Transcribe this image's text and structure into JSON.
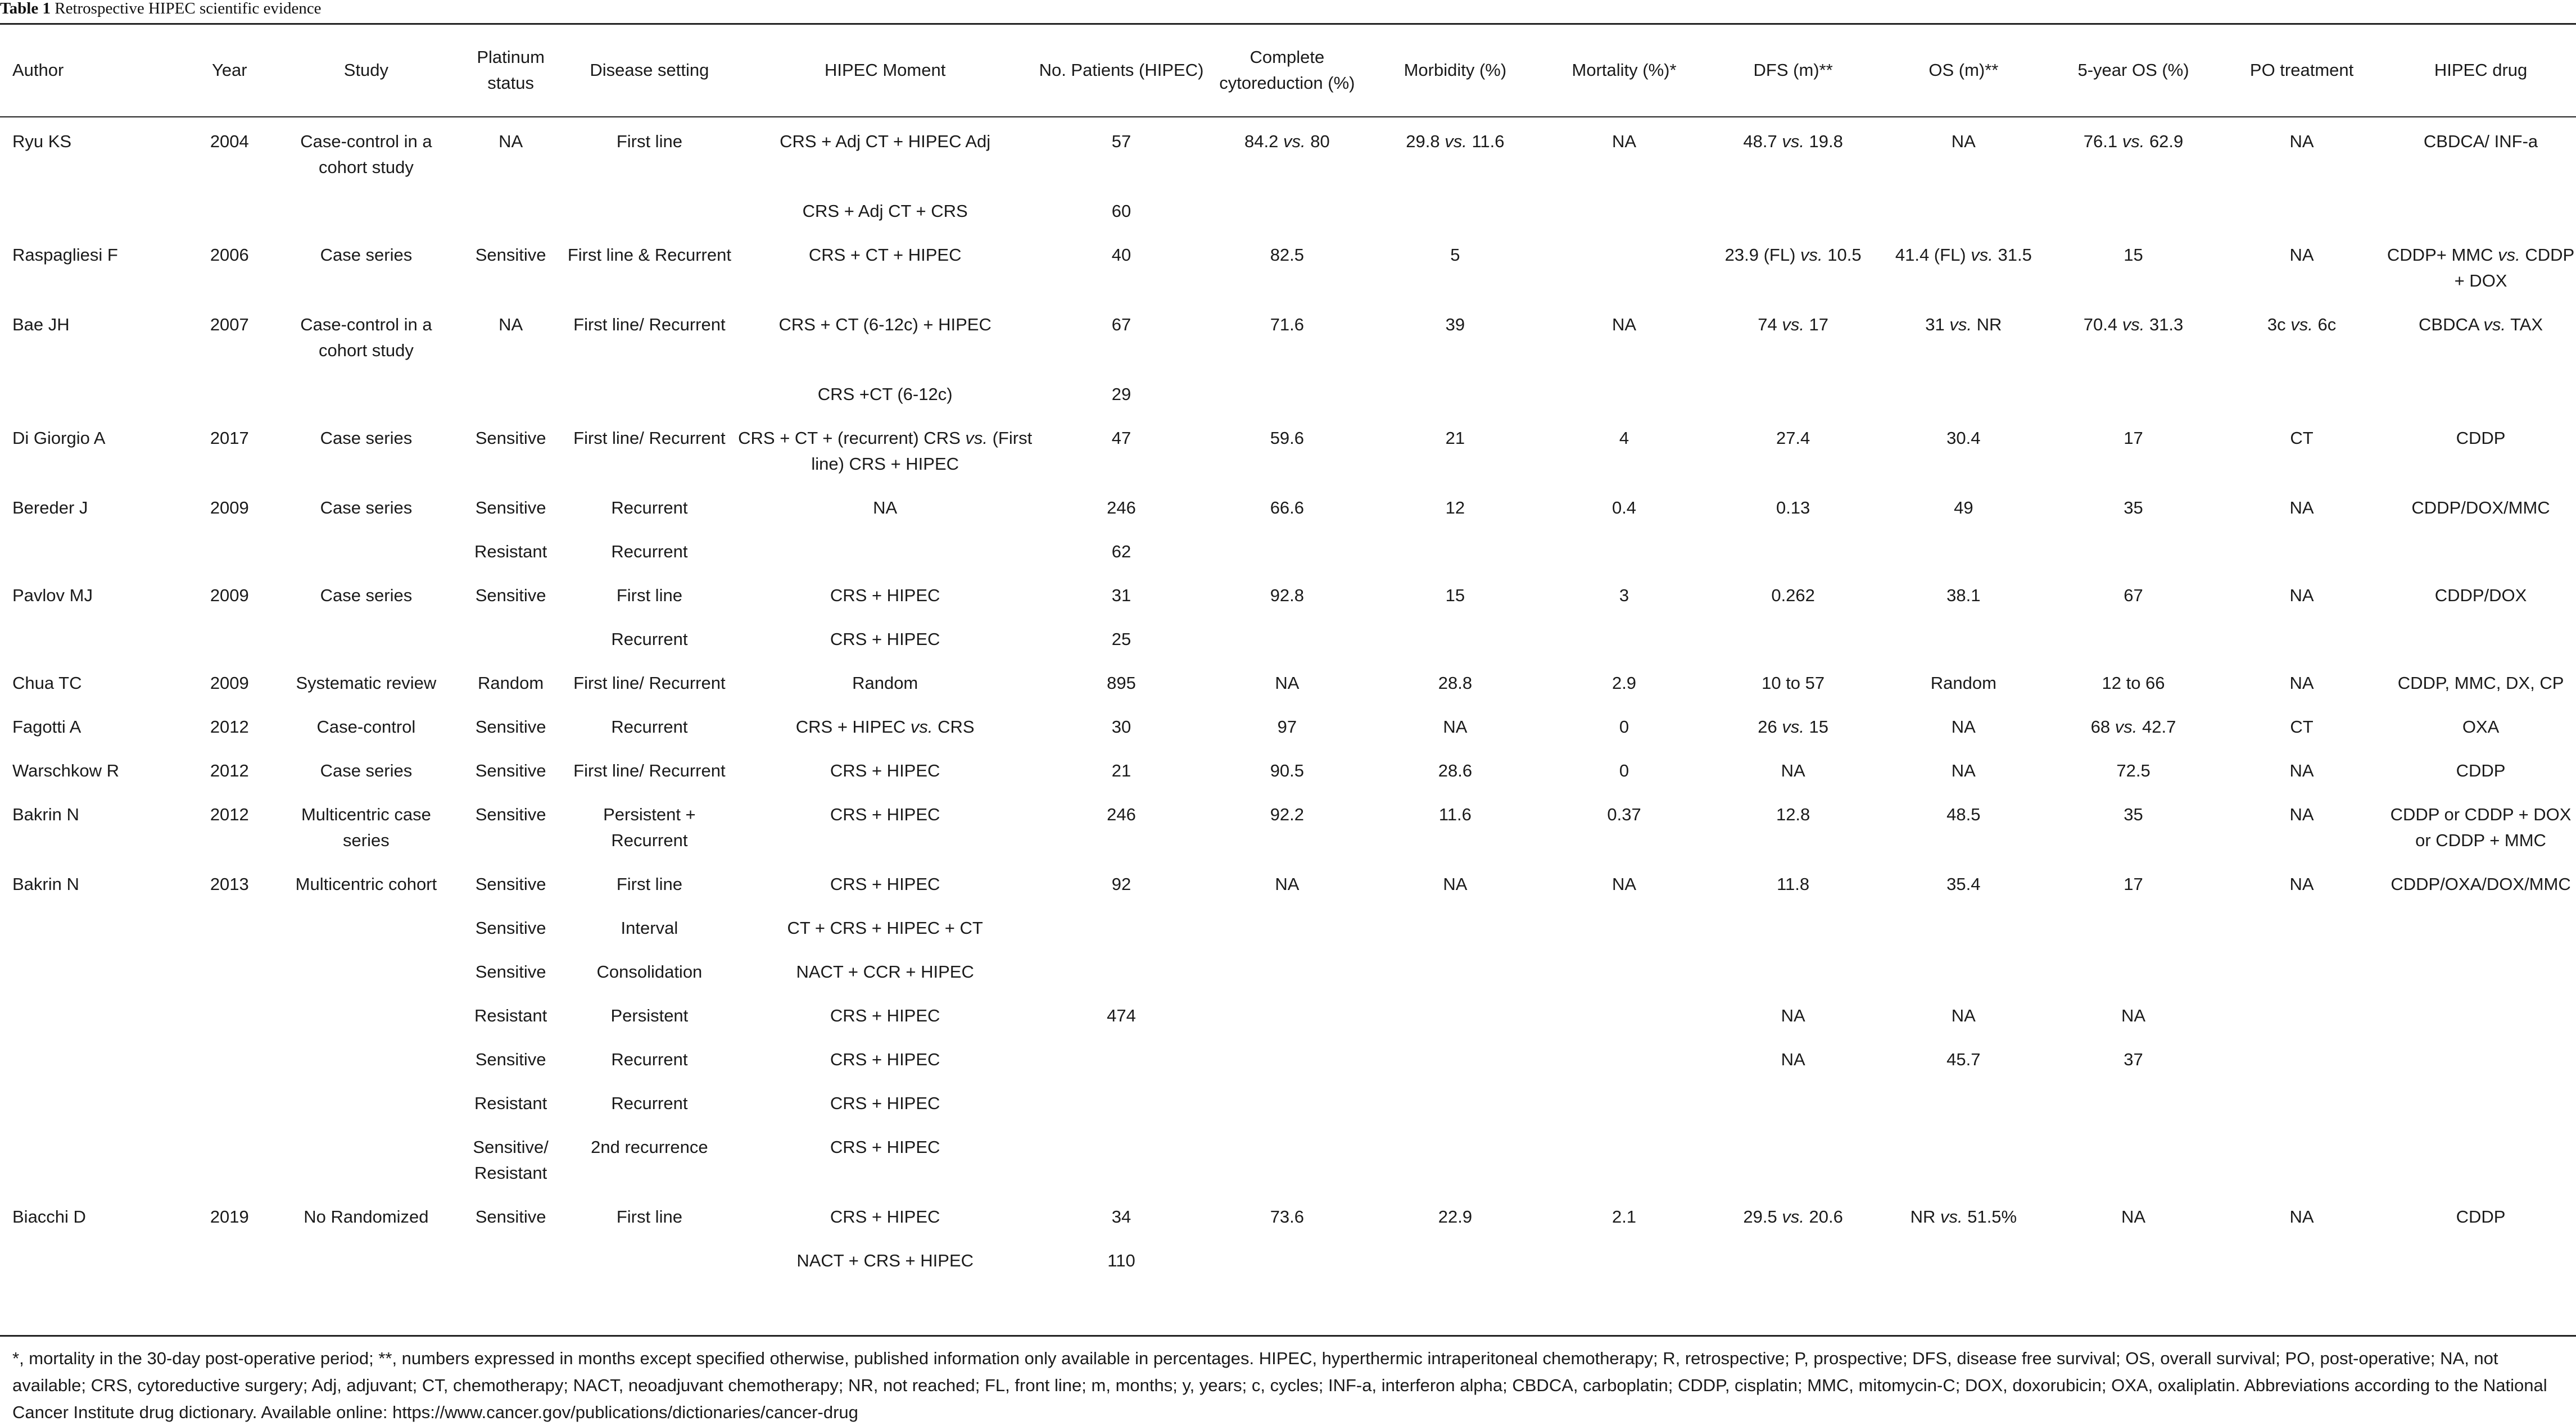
{
  "caption": {
    "label": "Table 1",
    "title": "Retrospective HIPEC scientific evidence"
  },
  "headers": [
    "Author",
    "Year",
    "Study",
    "Platinum status",
    "Disease setting",
    "HIPEC Moment",
    "No. Patients (HIPEC)",
    "Complete cytoreduction (%)",
    "Morbidity (%)",
    "Mortality (%)*",
    "DFS (m)**",
    "OS (m)**",
    "5-year OS (%)",
    "PO treatment",
    "HIPEC drug"
  ],
  "rows": [
    [
      "Ryu KS",
      "2004",
      "Case-control in a cohort study",
      "NA",
      "First line",
      "CRS + Adj CT + HIPEC Adj",
      "57",
      "84.2 vs. 80",
      "29.8 vs. 11.6",
      "NA",
      "48.7 vs. 19.8",
      "NA",
      "76.1 vs. 62.9",
      "NA",
      "CBDCA/ INF-a"
    ],
    [
      "",
      "",
      "",
      "",
      "",
      "CRS + Adj CT + CRS",
      "60",
      "",
      "",
      "",
      "",
      "",
      "",
      "",
      ""
    ],
    [
      "Raspagliesi F",
      "2006",
      "Case series",
      "Sensitive",
      "First line & Recurrent",
      "CRS + CT + HIPEC",
      "40",
      "82.5",
      "5",
      "",
      "23.9 (FL) vs. 10.5",
      "41.4 (FL) vs. 31.5",
      "15",
      "NA",
      "CDDP+ MMC vs. CDDP + DOX"
    ],
    [
      "Bae JH",
      "2007",
      "Case-control in a cohort study",
      "NA",
      "First line/ Recurrent",
      "CRS + CT (6-12c) + HIPEC",
      "67",
      "71.6",
      "39",
      "NA",
      "74 vs. 17",
      "31 vs. NR",
      "70.4 vs. 31.3",
      "3c vs. 6c",
      "CBDCA vs. TAX"
    ],
    [
      "",
      "",
      "",
      "",
      "",
      "CRS +CT (6-12c)",
      "29",
      "",
      "",
      "",
      "",
      "",
      "",
      "",
      ""
    ],
    [
      "Di Giorgio A",
      "2017",
      "Case series",
      "Sensitive",
      "First line/ Recurrent",
      "CRS + CT + (recurrent) CRS vs. (First line) CRS + HIPEC",
      "47",
      "59.6",
      "21",
      "4",
      "27.4",
      "30.4",
      "17",
      "CT",
      "CDDP"
    ],
    [
      "Bereder J",
      "2009",
      "Case series",
      "Sensitive",
      "Recurrent",
      "NA",
      "246",
      "66.6",
      "12",
      "0.4",
      "0.13",
      "49",
      "35",
      "NA",
      "CDDP/DOX/MMC"
    ],
    [
      "",
      "",
      "",
      "Resistant",
      "Recurrent",
      "",
      "62",
      "",
      "",
      "",
      "",
      "",
      "",
      "",
      ""
    ],
    [
      "Pavlov MJ",
      "2009",
      "Case series",
      "Sensitive",
      "First line",
      "CRS + HIPEC",
      "31",
      "92.8",
      "15",
      "3",
      "0.262",
      "38.1",
      "67",
      "NA",
      "CDDP/DOX"
    ],
    [
      "",
      "",
      "",
      "",
      "Recurrent",
      "CRS + HIPEC",
      "25",
      "",
      "",
      "",
      "",
      "",
      "",
      "",
      ""
    ],
    [
      "Chua TC",
      "2009",
      "Systematic review",
      "Random",
      "First line/ Recurrent",
      "Random",
      "895",
      "NA",
      "28.8",
      "2.9",
      "10 to 57",
      "Random",
      "12 to 66",
      "NA",
      "CDDP, MMC, DX, CP"
    ],
    [
      "Fagotti A",
      "2012",
      "Case-control",
      "Sensitive",
      "Recurrent",
      "CRS + HIPEC vs. CRS",
      "30",
      "97",
      "NA",
      "0",
      "26 vs. 15",
      "NA",
      "68 vs. 42.7",
      "CT",
      "OXA"
    ],
    [
      "Warschkow R",
      "2012",
      "Case series",
      "Sensitive",
      "First line/ Recurrent",
      "CRS + HIPEC",
      "21",
      "90.5",
      "28.6",
      "0",
      "NA",
      "NA",
      "72.5",
      "NA",
      "CDDP"
    ],
    [
      "Bakrin N",
      "2012",
      "Multicentric case series",
      "Sensitive",
      "Persistent + Recurrent",
      "CRS + HIPEC",
      "246",
      "92.2",
      "11.6",
      "0.37",
      "12.8",
      "48.5",
      "35",
      "NA",
      "CDDP or CDDP + DOX or CDDP + MMC"
    ],
    [
      "Bakrin N",
      "2013",
      "Multicentric cohort",
      "Sensitive",
      "First line",
      "CRS + HIPEC",
      "92",
      "NA",
      "NA",
      "NA",
      "11.8",
      "35.4",
      "17",
      "NA",
      "CDDP/OXA/DOX/MMC"
    ],
    [
      "",
      "",
      "",
      "Sensitive",
      "Interval",
      "CT + CRS + HIPEC + CT",
      "",
      "",
      "",
      "",
      "",
      "",
      "",
      "",
      ""
    ],
    [
      "",
      "",
      "",
      "Sensitive",
      "Consolidation",
      "NACT + CCR + HIPEC",
      "",
      "",
      "",
      "",
      "",
      "",
      "",
      "",
      ""
    ],
    [
      "",
      "",
      "",
      "Resistant",
      "Persistent",
      "CRS + HIPEC",
      "474",
      "",
      "",
      "",
      "NA",
      "NA",
      "NA",
      "",
      ""
    ],
    [
      "",
      "",
      "",
      "Sensitive",
      "Recurrent",
      "CRS + HIPEC",
      "",
      "",
      "",
      "",
      "NA",
      "45.7",
      "37",
      "",
      ""
    ],
    [
      "",
      "",
      "",
      "Resistant",
      "Recurrent",
      "CRS + HIPEC",
      "",
      "",
      "",
      "",
      "",
      "",
      "",
      "",
      ""
    ],
    [
      "",
      "",
      "",
      "Sensitive/ Resistant",
      "2nd recurrence",
      "CRS + HIPEC",
      "",
      "",
      "",
      "",
      "",
      "",
      "",
      "",
      ""
    ],
    [
      "Biacchi D",
      "2019",
      "No Randomized",
      "Sensitive",
      "First line",
      "CRS + HIPEC",
      "34",
      "73.6",
      "22.9",
      "2.1",
      "29.5 vs. 20.6",
      "NR vs. 51.5%",
      "NA",
      "NA",
      "CDDP"
    ],
    [
      "",
      "",
      "",
      "",
      "",
      "NACT + CRS + HIPEC",
      "110",
      "",
      "",
      "",
      "",
      "",
      "",
      "",
      ""
    ]
  ],
  "footnote": "*, mortality in the 30-day post-operative period; **, numbers expressed in months except specified otherwise, published information only available in percentages. HIPEC, hyperthermic intraperitoneal chemotherapy; R, retrospective; P, prospective; DFS, disease free survival; OS, overall survival; PO, post-operative; NA, not available; CRS, cytoreductive surgery; Adj, adjuvant; CT, chemotherapy; NACT, neoadjuvant chemotherapy; NR, not reached; FL, front line; m, months; y, years; c, cycles; INF-a, interferon alpha; CBDCA, carboplatin; CDDP, cisplatin; MMC, mitomycin-C; DOX, doxorubicin; OXA, oxaliplatin. Abbreviations according to the National Cancer Institute drug dictionary. Available online: https://www.cancer.gov/publications/dictionaries/cancer-drug"
}
